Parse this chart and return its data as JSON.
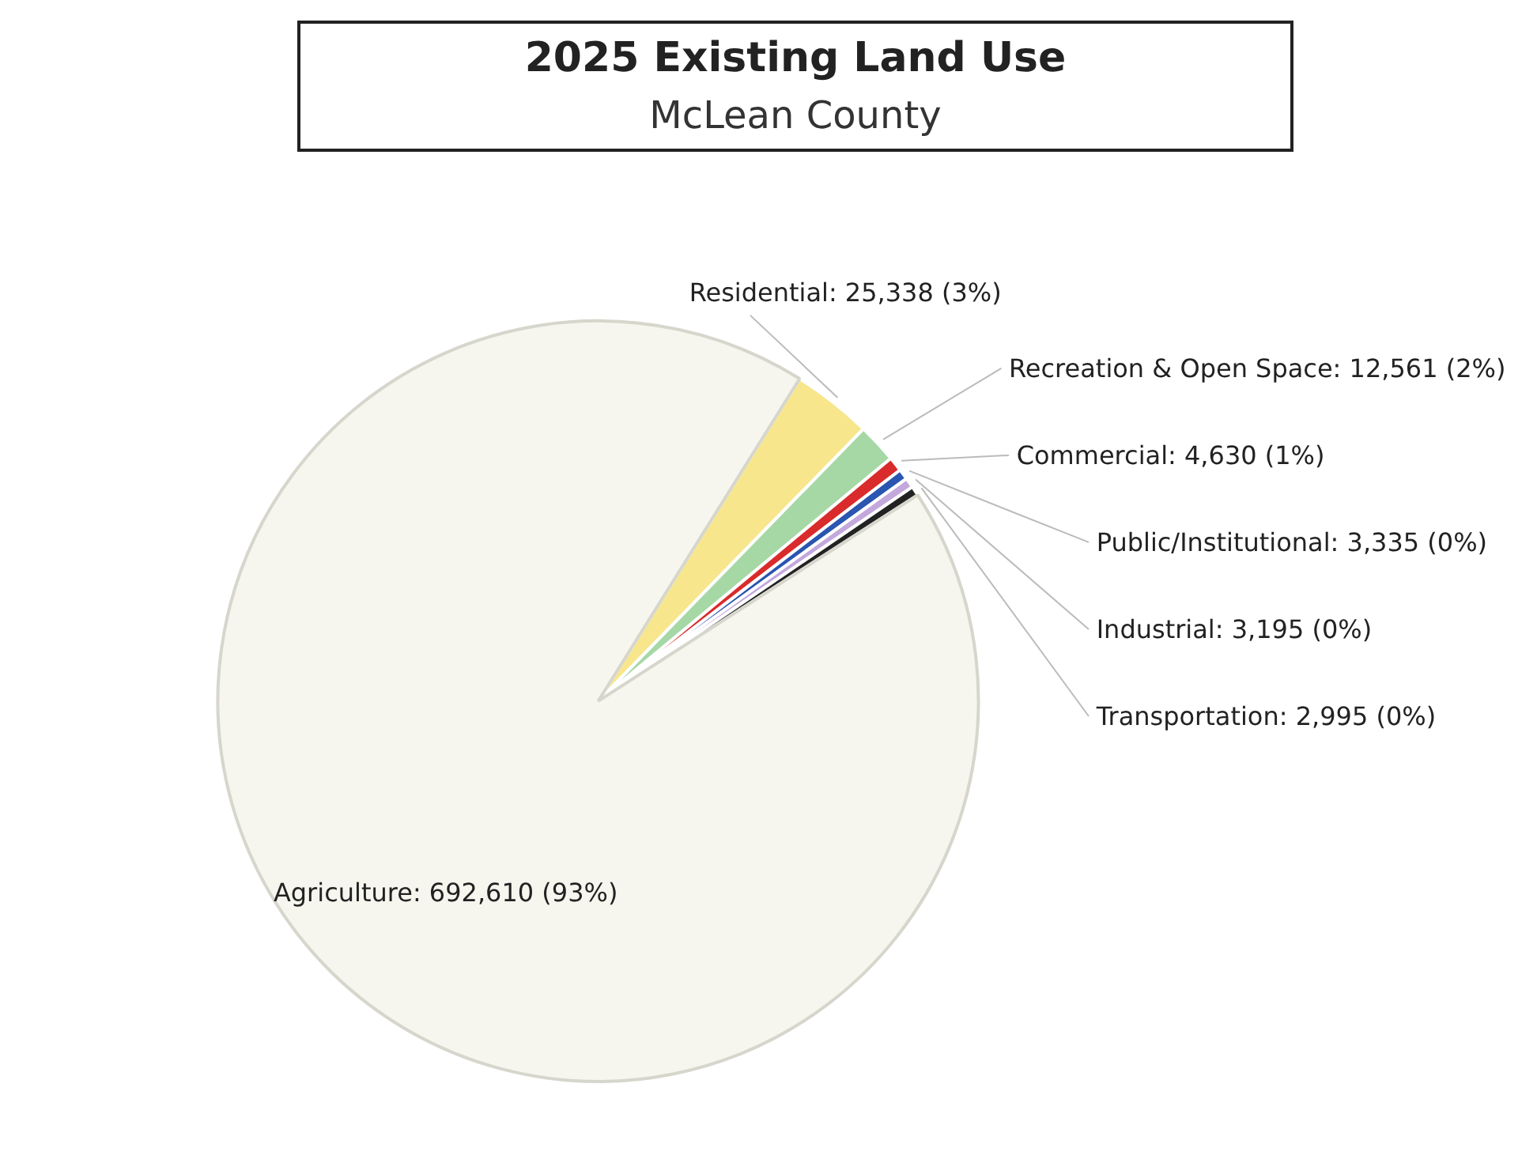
{
  "chart_data": {
    "type": "pie",
    "title": "2025 Existing Land Use",
    "subtitle": "McLean County",
    "categories": [
      "Residential: 25,338 (3%)",
      "Recreation & Open Space: 12,561 (2%)",
      "Commercial: 4,630 (1%)",
      "Public/Institutional: 3,335 (0%)",
      "Industrial: 3,195 (0%)",
      "Transportation: 2,995 (0%)",
      "Agriculture: 692,610 (93%)"
    ],
    "values": [
      25338,
      12561,
      4630,
      3335,
      3195,
      2995,
      692610
    ],
    "colors": [
      "#f7e68c",
      "#a6d8a6",
      "#d92b2b",
      "#2a55b0",
      "#c3a8dc",
      "#222222",
      "#f6f6ef"
    ]
  }
}
